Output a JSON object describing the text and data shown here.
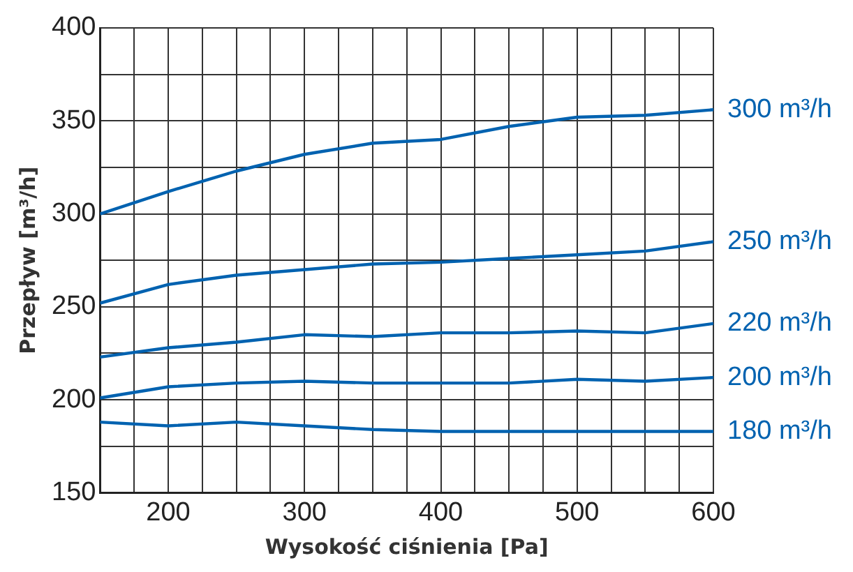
{
  "chart_data": {
    "type": "line",
    "xlabel": "Wysokość ciśnienia [Pa]",
    "ylabel": "Przepływ [m³/h]",
    "x": [
      150,
      200,
      250,
      300,
      350,
      400,
      450,
      500,
      550,
      600
    ],
    "xlim": [
      150,
      600
    ],
    "xticks": [
      {
        "value": 150,
        "label": null
      },
      {
        "value": 175,
        "label": null
      },
      200,
      {
        "value": 225,
        "label": null
      },
      {
        "value": 250,
        "label": null
      },
      {
        "value": 275,
        "label": null
      },
      300,
      {
        "value": 325,
        "label": null
      },
      {
        "value": 350,
        "label": null
      },
      {
        "value": 375,
        "label": null
      },
      400,
      {
        "value": 425,
        "label": null
      },
      {
        "value": 450,
        "label": null
      },
      {
        "value": 475,
        "label": null
      },
      500,
      {
        "value": 525,
        "label": null
      },
      {
        "value": 550,
        "label": null
      },
      {
        "value": 575,
        "label": null
      },
      600
    ],
    "ylim": [
      150,
      400
    ],
    "yticks": [
      150,
      {
        "value": 175,
        "label": null
      },
      200,
      {
        "value": 225,
        "label": null
      },
      250,
      {
        "value": 275,
        "label": null
      },
      300,
      {
        "value": 325,
        "label": null
      },
      350,
      {
        "value": 375,
        "label": null
      },
      400
    ],
    "grid": true,
    "legend": false,
    "marker": "none",
    "line_style": "solid",
    "series": [
      {
        "name": "300 m³/h",
        "color": "#0062b0",
        "values": [
          300,
          312,
          323,
          332,
          338,
          340,
          347,
          352,
          353,
          356
        ]
      },
      {
        "name": "250 m³/h",
        "color": "#0062b0",
        "values": [
          252,
          262,
          267,
          270,
          273,
          274,
          276,
          278,
          280,
          285
        ]
      },
      {
        "name": "220 m³/h",
        "color": "#0062b0",
        "values": [
          223,
          228,
          231,
          235,
          234,
          236,
          236,
          237,
          236,
          241
        ]
      },
      {
        "name": "200 m³/h",
        "color": "#0062b0",
        "values": [
          201,
          207,
          209,
          210,
          209,
          209,
          209,
          211,
          210,
          212
        ]
      },
      {
        "name": "180 m³/h",
        "color": "#0062b0",
        "values": [
          188,
          186,
          188,
          186,
          184,
          183,
          183,
          183,
          183,
          183
        ]
      }
    ]
  }
}
